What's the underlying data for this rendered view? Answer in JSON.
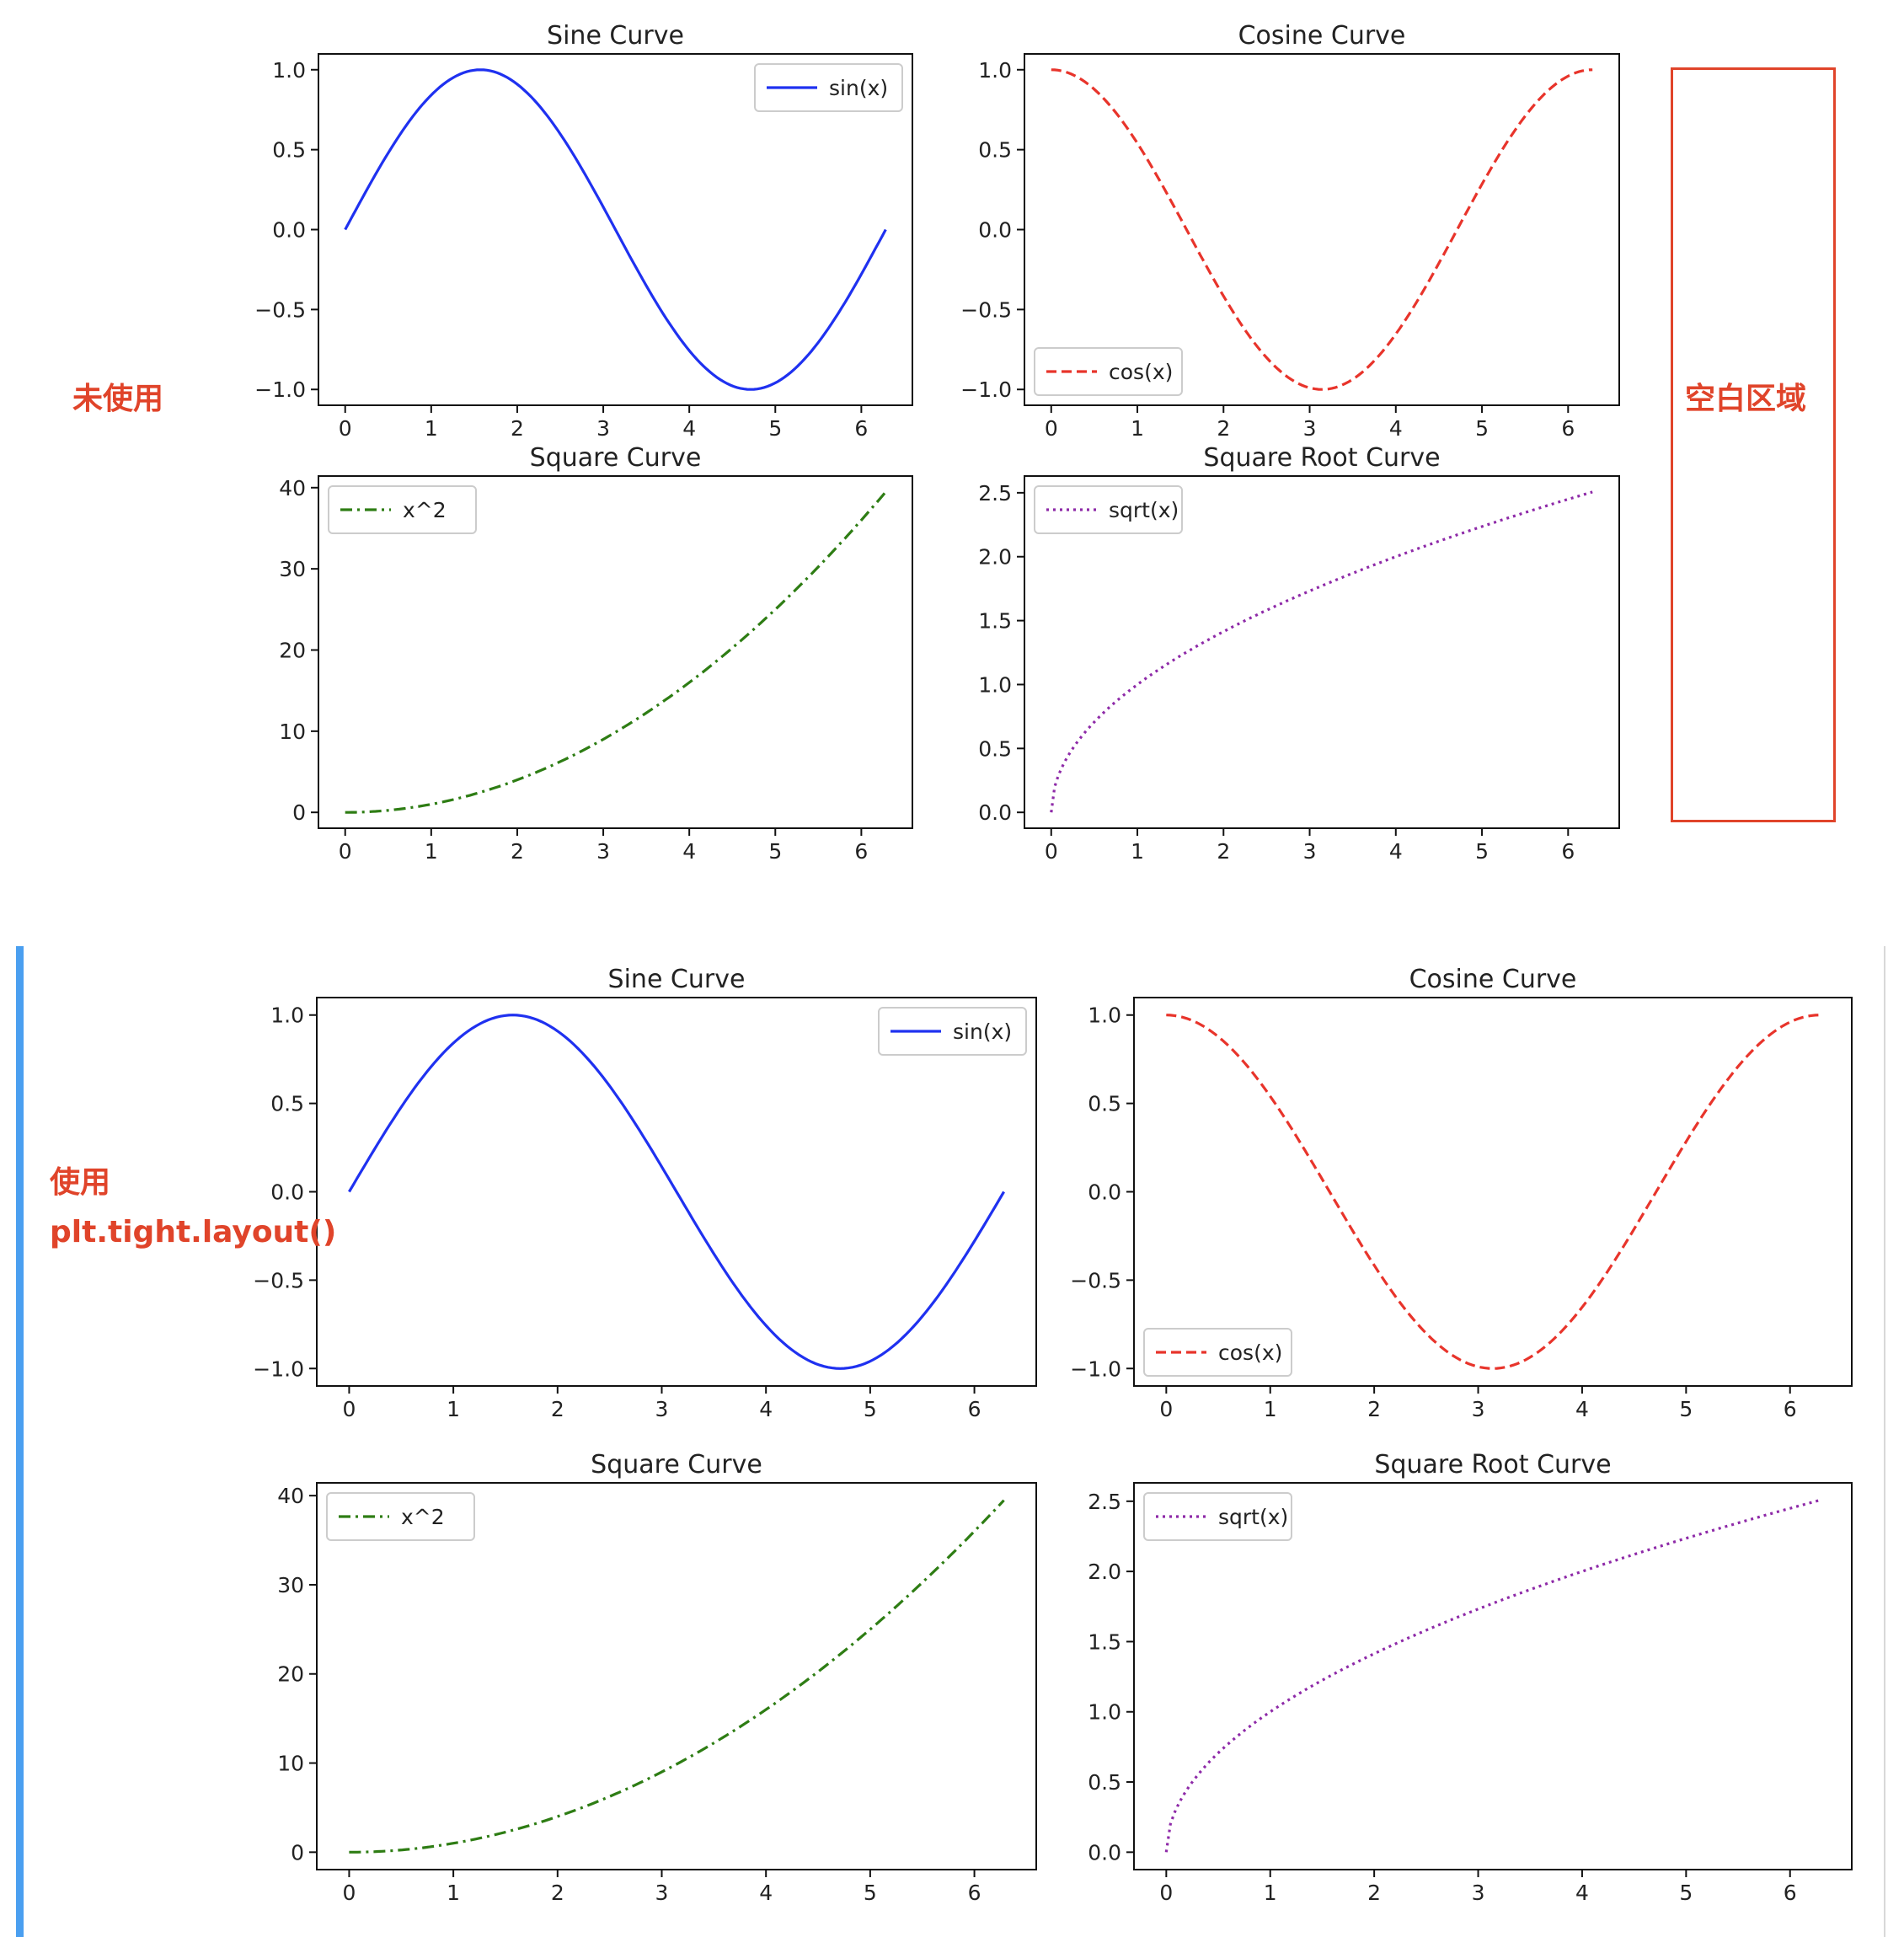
{
  "annotations": {
    "unused": "未使用",
    "blank_area": "空白区域",
    "used_line1": "使用",
    "used_line2": "plt.tight.layout()"
  },
  "colors": {
    "annotation": "#e0442a",
    "sidebar": "#4a9ff0"
  },
  "chart_data": [
    {
      "type": "line",
      "panel": "top",
      "title": "Sine Curve",
      "xlim": [
        0,
        6.283
      ],
      "ylim": [
        -1,
        1
      ],
      "xticks": [
        0,
        1,
        2,
        3,
        4,
        5,
        6
      ],
      "yticks": [
        -1.0,
        -0.5,
        0.0,
        0.5,
        1.0
      ],
      "legend": "top-right",
      "series": [
        {
          "name": "sin(x)",
          "color": "#1f31f0",
          "style": "solid",
          "function": "sin(x)",
          "x": [
            0,
            0.5,
            1,
            1.5708,
            2,
            2.5,
            3,
            3.5,
            4,
            4.7124,
            5,
            5.5,
            6,
            6.2832
          ],
          "y": [
            0,
            0.479,
            0.841,
            1.0,
            0.909,
            0.598,
            0.141,
            -0.351,
            -0.757,
            -1.0,
            -0.959,
            -0.706,
            -0.279,
            0
          ]
        }
      ]
    },
    {
      "type": "line",
      "panel": "top",
      "title": "Cosine Curve",
      "xlim": [
        0,
        6.283
      ],
      "ylim": [
        -1,
        1
      ],
      "xticks": [
        0,
        1,
        2,
        3,
        4,
        5,
        6
      ],
      "yticks": [
        -1.0,
        -0.5,
        0.0,
        0.5,
        1.0
      ],
      "legend": "lower-left",
      "series": [
        {
          "name": "cos(x)",
          "color": "#e8342b",
          "style": "dashed",
          "function": "cos(x)",
          "x": [
            0,
            0.5,
            1,
            1.5,
            2,
            2.5,
            3,
            3.1416,
            3.5,
            4,
            4.5,
            5,
            5.5,
            6,
            6.2832
          ],
          "y": [
            1.0,
            0.878,
            0.54,
            0.071,
            -0.416,
            -0.801,
            -0.99,
            -1.0,
            -0.936,
            -0.654,
            -0.211,
            0.284,
            0.709,
            0.96,
            1.0
          ]
        }
      ]
    },
    {
      "type": "line",
      "panel": "top",
      "title": "Square Curve",
      "xlim": [
        0,
        6.283
      ],
      "ylim": [
        0,
        39.48
      ],
      "xticks": [
        0,
        1,
        2,
        3,
        4,
        5,
        6
      ],
      "yticks": [
        0,
        10,
        20,
        30,
        40
      ],
      "legend": "top-left",
      "series": [
        {
          "name": "x^2",
          "color": "#2e7d14",
          "style": "dashdot",
          "function": "square",
          "x": [
            0,
            1,
            2,
            3,
            4,
            5,
            6,
            6.2832
          ],
          "y": [
            0,
            1,
            4,
            9,
            16,
            25,
            36,
            39.48
          ]
        }
      ]
    },
    {
      "type": "line",
      "panel": "top",
      "title": "Square Root Curve",
      "xlim": [
        0,
        6.283
      ],
      "ylim": [
        0,
        2.507
      ],
      "xticks": [
        0,
        1,
        2,
        3,
        4,
        5,
        6
      ],
      "yticks": [
        0.0,
        0.5,
        1.0,
        1.5,
        2.0,
        2.5
      ],
      "legend": "top-left",
      "series": [
        {
          "name": "sqrt(x)",
          "color": "#8e2aa8",
          "style": "dotted",
          "function": "sqrt",
          "x": [
            0,
            0.25,
            1,
            2,
            3,
            4,
            5,
            6,
            6.2832
          ],
          "y": [
            0,
            0.5,
            1,
            1.414,
            1.732,
            2,
            2.236,
            2.449,
            2.507
          ]
        }
      ]
    },
    {
      "type": "line",
      "panel": "bottom",
      "title": "Sine Curve",
      "xlim": [
        0,
        6.283
      ],
      "ylim": [
        -1,
        1
      ],
      "xticks": [
        0,
        1,
        2,
        3,
        4,
        5,
        6
      ],
      "yticks": [
        -1.0,
        -0.5,
        0.0,
        0.5,
        1.0
      ],
      "legend": "top-right",
      "series": [
        {
          "name": "sin(x)",
          "color": "#1f31f0",
          "style": "solid",
          "function": "sin(x)",
          "x": [
            0,
            0.5,
            1,
            1.5708,
            2,
            2.5,
            3,
            3.5,
            4,
            4.7124,
            5,
            5.5,
            6,
            6.2832
          ],
          "y": [
            0,
            0.479,
            0.841,
            1.0,
            0.909,
            0.598,
            0.141,
            -0.351,
            -0.757,
            -1.0,
            -0.959,
            -0.706,
            -0.279,
            0
          ]
        }
      ]
    },
    {
      "type": "line",
      "panel": "bottom",
      "title": "Cosine Curve",
      "xlim": [
        0,
        6.283
      ],
      "ylim": [
        -1,
        1
      ],
      "xticks": [
        0,
        1,
        2,
        3,
        4,
        5,
        6
      ],
      "yticks": [
        -1.0,
        -0.5,
        0.0,
        0.5,
        1.0
      ],
      "legend": "lower-left",
      "series": [
        {
          "name": "cos(x)",
          "color": "#e8342b",
          "style": "dashed",
          "function": "cos(x)",
          "x": [
            0,
            0.5,
            1,
            1.5,
            2,
            2.5,
            3,
            3.1416,
            3.5,
            4,
            4.5,
            5,
            5.5,
            6,
            6.2832
          ],
          "y": [
            1.0,
            0.878,
            0.54,
            0.071,
            -0.416,
            -0.801,
            -0.99,
            -1.0,
            -0.936,
            -0.654,
            -0.211,
            0.284,
            0.709,
            0.96,
            1.0
          ]
        }
      ]
    },
    {
      "type": "line",
      "panel": "bottom",
      "title": "Square Curve",
      "xlim": [
        0,
        6.283
      ],
      "ylim": [
        0,
        39.48
      ],
      "xticks": [
        0,
        1,
        2,
        3,
        4,
        5,
        6
      ],
      "yticks": [
        0,
        10,
        20,
        30,
        40
      ],
      "legend": "top-left",
      "series": [
        {
          "name": "x^2",
          "color": "#2e7d14",
          "style": "dashdot",
          "function": "square",
          "x": [
            0,
            1,
            2,
            3,
            4,
            5,
            6,
            6.2832
          ],
          "y": [
            0,
            1,
            4,
            9,
            16,
            25,
            36,
            39.48
          ]
        }
      ]
    },
    {
      "type": "line",
      "panel": "bottom",
      "title": "Square Root Curve",
      "xlim": [
        0,
        6.283
      ],
      "ylim": [
        0,
        2.507
      ],
      "xticks": [
        0,
        1,
        2,
        3,
        4,
        5,
        6
      ],
      "yticks": [
        0.0,
        0.5,
        1.0,
        1.5,
        2.0,
        2.5
      ],
      "legend": "top-left",
      "series": [
        {
          "name": "sqrt(x)",
          "color": "#8e2aa8",
          "style": "dotted",
          "function": "sqrt",
          "x": [
            0,
            0.25,
            1,
            2,
            3,
            4,
            5,
            6,
            6.2832
          ],
          "y": [
            0,
            0.5,
            1,
            1.414,
            1.732,
            2,
            2.236,
            2.449,
            2.507
          ]
        }
      ]
    }
  ]
}
